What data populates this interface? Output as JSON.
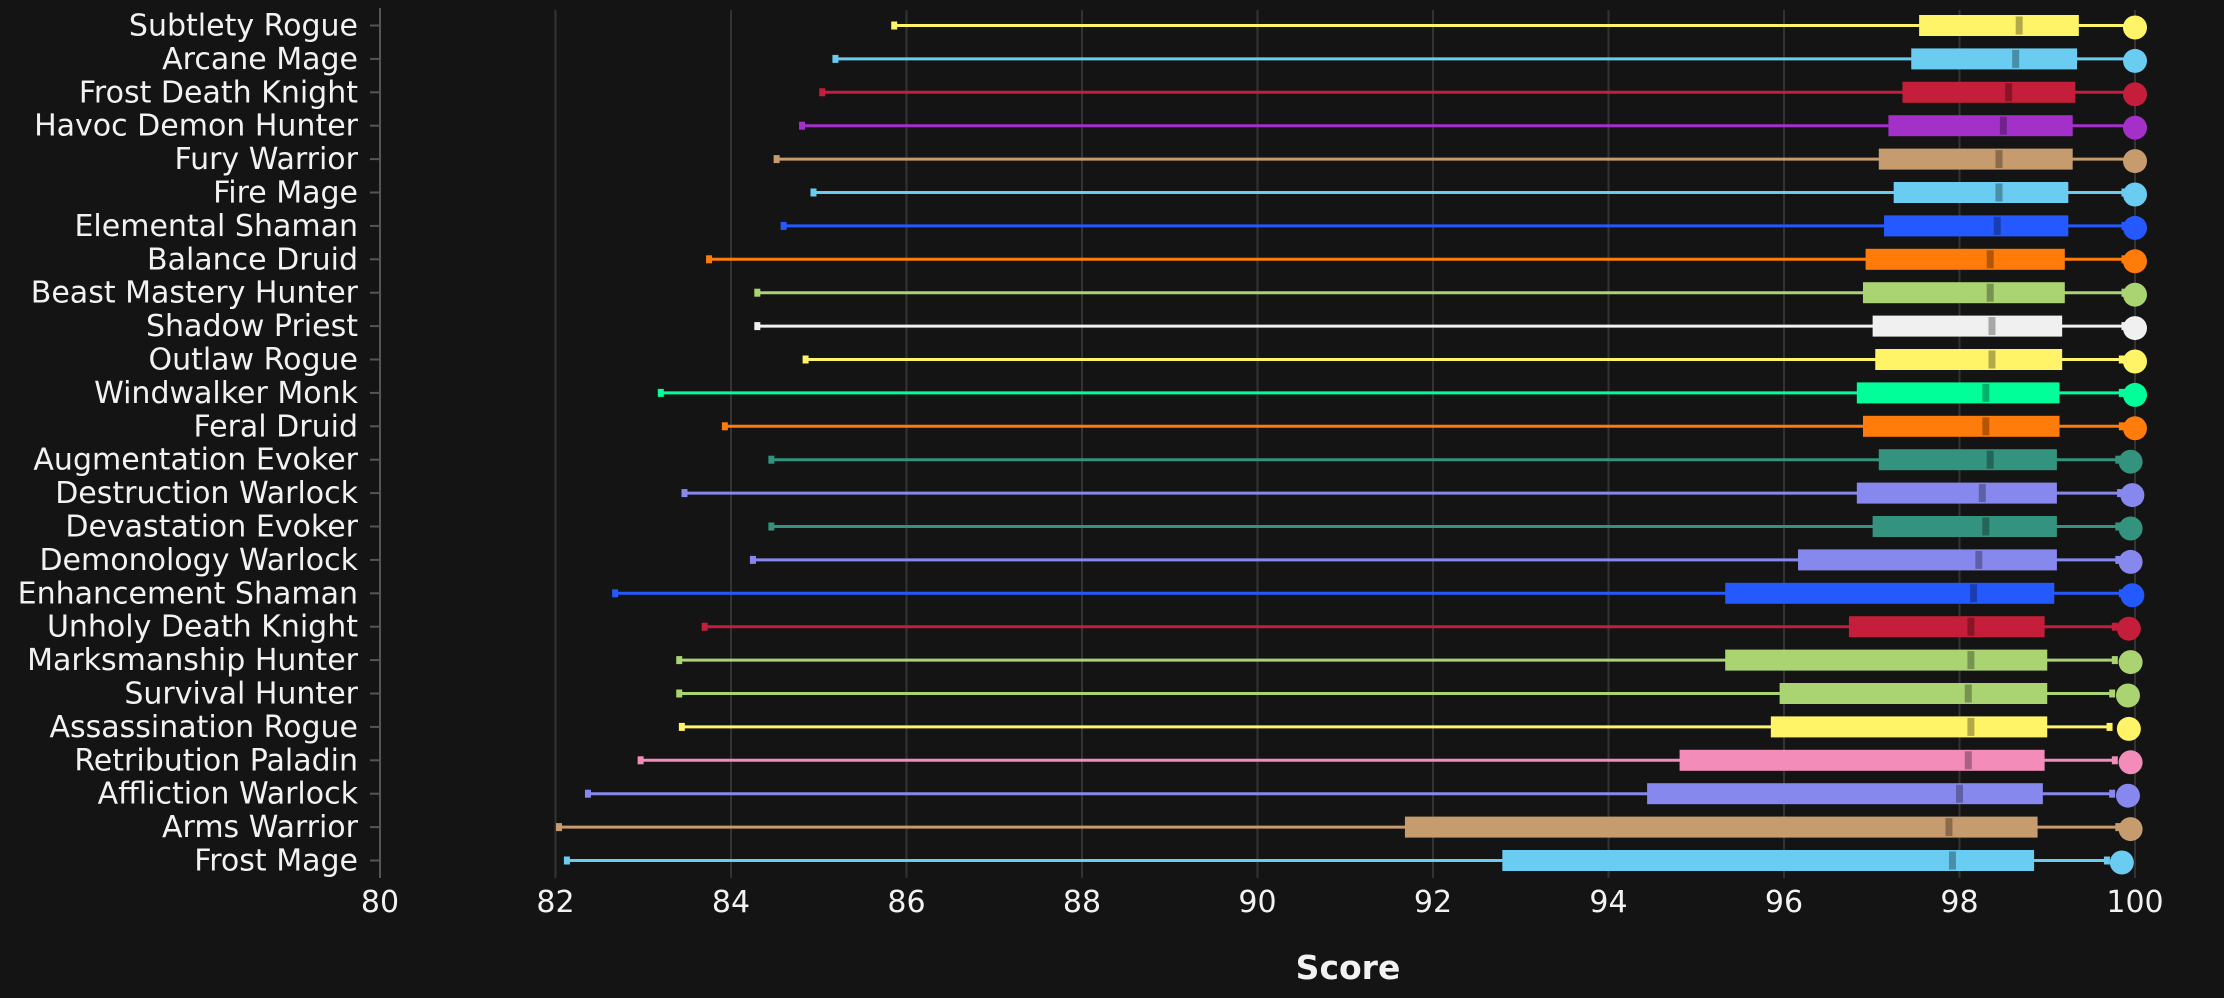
{
  "chart_data": {
    "type": "boxplot",
    "xlabel": "Score",
    "xlim": [
      80,
      100
    ],
    "xticks": [
      80,
      82,
      84,
      86,
      88,
      90,
      92,
      94,
      96,
      98,
      100
    ],
    "grid": "vertical",
    "series": [
      {
        "name": "Subtlety Rogue",
        "color": "#FFF468",
        "min": 85.86,
        "q1": 97.54,
        "median": 98.68,
        "q3": 99.36,
        "whisker_max": 99.97,
        "max": 100
      },
      {
        "name": "Arcane Mage",
        "color": "#69CCF0",
        "min": 85.19,
        "q1": 97.45,
        "median": 98.64,
        "q3": 99.34,
        "whisker_max": 99.93,
        "max": 100
      },
      {
        "name": "Frost Death Knight",
        "color": "#C41E3A",
        "min": 85.04,
        "q1": 97.35,
        "median": 98.56,
        "q3": 99.32,
        "whisker_max": 99.95,
        "max": 100
      },
      {
        "name": "Havoc Demon Hunter",
        "color": "#A330C9",
        "min": 84.81,
        "q1": 97.19,
        "median": 98.5,
        "q3": 99.29,
        "whisker_max": 99.95,
        "max": 100
      },
      {
        "name": "Fury Warrior",
        "color": "#C69B6D",
        "min": 84.52,
        "q1": 97.08,
        "median": 98.45,
        "q3": 99.29,
        "whisker_max": 99.93,
        "max": 100
      },
      {
        "name": "Fire Mage",
        "color": "#69CCF0",
        "min": 84.94,
        "q1": 97.25,
        "median": 98.45,
        "q3": 99.24,
        "whisker_max": 99.88,
        "max": 100
      },
      {
        "name": "Elemental Shaman",
        "color": "#2459FF",
        "min": 84.6,
        "q1": 97.14,
        "median": 98.43,
        "q3": 99.24,
        "whisker_max": 99.88,
        "max": 100
      },
      {
        "name": "Balance Druid",
        "color": "#FF7C0A",
        "min": 83.75,
        "q1": 96.93,
        "median": 98.35,
        "q3": 99.2,
        "whisker_max": 99.88,
        "max": 100
      },
      {
        "name": "Beast Mastery Hunter",
        "color": "#AAD372",
        "min": 84.3,
        "q1": 96.9,
        "median": 98.35,
        "q3": 99.2,
        "whisker_max": 99.88,
        "max": 100
      },
      {
        "name": "Shadow Priest",
        "color": "#F0F0F0",
        "min": 84.3,
        "q1": 97.01,
        "median": 98.37,
        "q3": 99.17,
        "whisker_max": 99.88,
        "max": 100
      },
      {
        "name": "Outlaw Rogue",
        "color": "#FFF468",
        "min": 84.85,
        "q1": 97.04,
        "median": 98.37,
        "q3": 99.17,
        "whisker_max": 99.85,
        "max": 100
      },
      {
        "name": "Windwalker Monk",
        "color": "#00FF98",
        "min": 83.2,
        "q1": 96.83,
        "median": 98.3,
        "q3": 99.14,
        "whisker_max": 99.85,
        "max": 100
      },
      {
        "name": "Feral Druid",
        "color": "#FF7C0A",
        "min": 83.93,
        "q1": 96.9,
        "median": 98.3,
        "q3": 99.14,
        "whisker_max": 99.85,
        "max": 100
      },
      {
        "name": "Augmentation Evoker",
        "color": "#33937F",
        "min": 84.46,
        "q1": 97.08,
        "median": 98.35,
        "q3": 99.11,
        "whisker_max": 99.81,
        "max": 99.95
      },
      {
        "name": "Destruction Warlock",
        "color": "#8788EE",
        "min": 83.47,
        "q1": 96.83,
        "median": 98.26,
        "q3": 99.11,
        "whisker_max": 99.83,
        "max": 99.97
      },
      {
        "name": "Devastation Evoker",
        "color": "#33937F",
        "min": 84.46,
        "q1": 97.01,
        "median": 98.3,
        "q3": 99.11,
        "whisker_max": 99.81,
        "max": 99.95
      },
      {
        "name": "Demonology Warlock",
        "color": "#8788EE",
        "min": 84.25,
        "q1": 96.16,
        "median": 98.22,
        "q3": 99.11,
        "whisker_max": 99.81,
        "max": 99.95
      },
      {
        "name": "Enhancement Shaman",
        "color": "#2459FF",
        "min": 82.68,
        "q1": 95.33,
        "median": 98.16,
        "q3": 99.08,
        "whisker_max": 99.85,
        "max": 99.97
      },
      {
        "name": "Unholy Death Knight",
        "color": "#C41E3A",
        "min": 83.7,
        "q1": 96.74,
        "median": 98.13,
        "q3": 98.97,
        "whisker_max": 99.77,
        "max": 99.93
      },
      {
        "name": "Marksmanship Hunter",
        "color": "#AAD372",
        "min": 83.41,
        "q1": 95.33,
        "median": 98.13,
        "q3": 99.0,
        "whisker_max": 99.77,
        "max": 99.95
      },
      {
        "name": "Survival Hunter",
        "color": "#AAD372",
        "min": 83.41,
        "q1": 95.95,
        "median": 98.1,
        "q3": 99.0,
        "whisker_max": 99.74,
        "max": 99.92
      },
      {
        "name": "Assassination Rogue",
        "color": "#FFF468",
        "min": 83.44,
        "q1": 95.85,
        "median": 98.13,
        "q3": 99.0,
        "whisker_max": 99.71,
        "max": 99.93
      },
      {
        "name": "Retribution Paladin",
        "color": "#F48CBA",
        "min": 82.97,
        "q1": 94.81,
        "median": 98.1,
        "q3": 98.97,
        "whisker_max": 99.77,
        "max": 99.95
      },
      {
        "name": "Affliction Warlock",
        "color": "#8788EE",
        "min": 82.37,
        "q1": 94.44,
        "median": 98.0,
        "q3": 98.95,
        "whisker_max": 99.74,
        "max": 99.92
      },
      {
        "name": "Arms Warrior",
        "color": "#C69B6D",
        "min": 82.04,
        "q1": 91.68,
        "median": 97.88,
        "q3": 98.89,
        "whisker_max": 99.81,
        "max": 99.95
      },
      {
        "name": "Frost Mage",
        "color": "#69CCF0",
        "min": 82.13,
        "q1": 92.79,
        "median": 97.92,
        "q3": 98.85,
        "whisker_max": 99.68,
        "max": 99.85
      }
    ]
  }
}
